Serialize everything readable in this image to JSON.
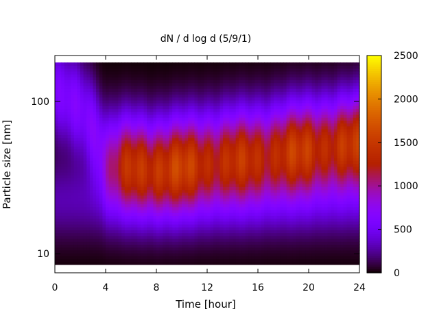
{
  "chart_data": {
    "type": "heatmap",
    "title": "dN / d log d (5/9/1)",
    "xlabel": "Time [hour]",
    "ylabel": "Particle size [nm]",
    "x_range": [
      0,
      24
    ],
    "y_range": [
      7.5,
      200
    ],
    "y_scale": "log",
    "x_ticks": [
      0,
      4,
      8,
      12,
      16,
      20,
      24
    ],
    "y_ticks": [
      10,
      100
    ],
    "colorbar": {
      "range": [
        0,
        2500
      ],
      "ticks": [
        0,
        500,
        1000,
        1500,
        2000,
        2500
      ],
      "palette": "black-purple-red-orange-yellow"
    },
    "size_coverage_nm": [
      8.5,
      180
    ],
    "mode_by_hour": [
      {
        "hour": 0,
        "mode_nm": 120,
        "peak": 650
      },
      {
        "hour": 2,
        "mode_nm": 90,
        "peak": 700
      },
      {
        "hour": 4,
        "mode_nm": 42,
        "peak": 950
      },
      {
        "hour": 6,
        "mode_nm": 40,
        "peak": 1500
      },
      {
        "hour": 8,
        "mode_nm": 38,
        "peak": 1650
      },
      {
        "hour": 10,
        "mode_nm": 40,
        "peak": 1600
      },
      {
        "hour": 12,
        "mode_nm": 42,
        "peak": 1550
      },
      {
        "hour": 14,
        "mode_nm": 44,
        "peak": 1500
      },
      {
        "hour": 16,
        "mode_nm": 45,
        "peak": 1550
      },
      {
        "hour": 18,
        "mode_nm": 48,
        "peak": 1600
      },
      {
        "hour": 20,
        "mode_nm": 50,
        "peak": 1650
      },
      {
        "hour": 22,
        "mode_nm": 52,
        "peak": 1650
      },
      {
        "hour": 24,
        "mode_nm": 55,
        "peak": 1600
      }
    ]
  }
}
